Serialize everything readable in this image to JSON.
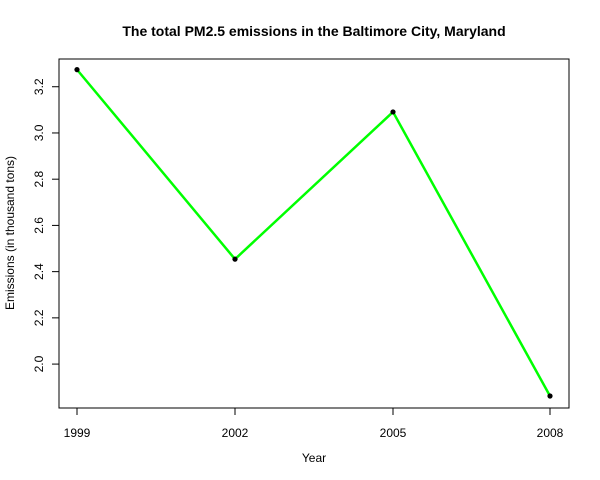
{
  "chart_data": {
    "type": "line",
    "title": "The total PM2.5 emissions in the Baltimore City, Maryland",
    "xlabel": "Year",
    "ylabel": "Emissions (in thousand tons)",
    "x": [
      "1999",
      "2002",
      "2005",
      "2008"
    ],
    "series": [
      {
        "values": [
          3.274,
          2.454,
          3.091,
          1.862
        ]
      }
    ],
    "yticks": [
      "2.0",
      "2.2",
      "2.4",
      "2.6",
      "2.8",
      "3.0",
      "3.2"
    ],
    "ylim": [
      1.81,
      3.32
    ],
    "grid": false,
    "line_color": "#00ff00",
    "point_color": "#000000"
  }
}
